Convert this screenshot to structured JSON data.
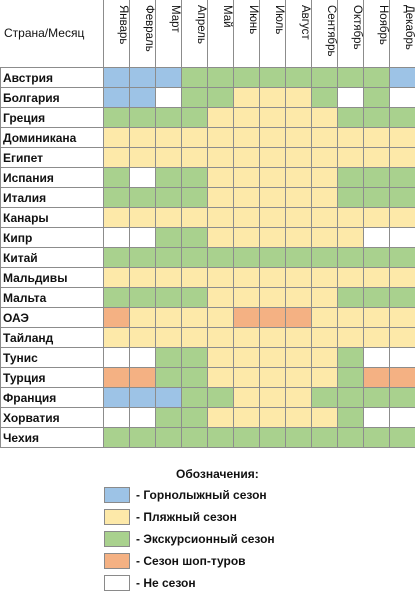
{
  "chart_data": {
    "type": "table",
    "corner_label": "Страна/Месяц",
    "months": [
      "Январь",
      "Февраль",
      "Март",
      "Апрель",
      "Май",
      "Июнь",
      "Июль",
      "Август",
      "Сентябрь",
      "Октябрь",
      "Ноябрь",
      "Декабрь"
    ],
    "countries": [
      {
        "name": "Австрия",
        "seasons": [
          "S",
          "S",
          "S",
          "E",
          "E",
          "E",
          "E",
          "E",
          "E",
          "E",
          "E",
          "S"
        ]
      },
      {
        "name": "Болгария",
        "seasons": [
          "S",
          "S",
          "N",
          "E",
          "E",
          "B",
          "B",
          "B",
          "E",
          "N",
          "E",
          "N"
        ]
      },
      {
        "name": "Греция",
        "seasons": [
          "E",
          "E",
          "E",
          "E",
          "B",
          "B",
          "B",
          "B",
          "B",
          "E",
          "E",
          "E"
        ]
      },
      {
        "name": "Доминикана",
        "seasons": [
          "B",
          "B",
          "B",
          "B",
          "B",
          "B",
          "B",
          "B",
          "B",
          "B",
          "B",
          "B"
        ]
      },
      {
        "name": "Египет",
        "seasons": [
          "B",
          "B",
          "B",
          "B",
          "B",
          "B",
          "B",
          "B",
          "B",
          "B",
          "B",
          "B"
        ]
      },
      {
        "name": "Испания",
        "seasons": [
          "E",
          "N",
          "E",
          "E",
          "B",
          "B",
          "B",
          "B",
          "B",
          "E",
          "E",
          "E"
        ]
      },
      {
        "name": "Италия",
        "seasons": [
          "E",
          "E",
          "E",
          "E",
          "B",
          "B",
          "B",
          "B",
          "B",
          "E",
          "E",
          "E"
        ]
      },
      {
        "name": "Канары",
        "seasons": [
          "B",
          "B",
          "B",
          "B",
          "B",
          "B",
          "B",
          "B",
          "B",
          "B",
          "B",
          "B"
        ]
      },
      {
        "name": "Кипр",
        "seasons": [
          "N",
          "N",
          "E",
          "E",
          "B",
          "B",
          "B",
          "B",
          "B",
          "B",
          "N",
          "N"
        ]
      },
      {
        "name": "Китай",
        "seasons": [
          "E",
          "E",
          "E",
          "E",
          "E",
          "E",
          "E",
          "E",
          "E",
          "E",
          "E",
          "E"
        ]
      },
      {
        "name": "Мальдивы",
        "seasons": [
          "B",
          "B",
          "B",
          "B",
          "B",
          "B",
          "B",
          "B",
          "B",
          "B",
          "B",
          "B"
        ]
      },
      {
        "name": "Мальта",
        "seasons": [
          "E",
          "E",
          "E",
          "E",
          "B",
          "B",
          "B",
          "B",
          "B",
          "E",
          "E",
          "E"
        ]
      },
      {
        "name": "ОАЭ",
        "seasons": [
          "P",
          "B",
          "B",
          "B",
          "B",
          "P",
          "P",
          "P",
          "B",
          "B",
          "B",
          "B"
        ]
      },
      {
        "name": "Тайланд",
        "seasons": [
          "B",
          "B",
          "B",
          "B",
          "B",
          "B",
          "B",
          "B",
          "B",
          "B",
          "B",
          "B"
        ]
      },
      {
        "name": "Тунис",
        "seasons": [
          "N",
          "N",
          "E",
          "E",
          "B",
          "B",
          "B",
          "B",
          "B",
          "E",
          "N",
          "N"
        ]
      },
      {
        "name": "Турция",
        "seasons": [
          "P",
          "P",
          "E",
          "E",
          "B",
          "B",
          "B",
          "B",
          "B",
          "E",
          "P",
          "P"
        ]
      },
      {
        "name": "Франция",
        "seasons": [
          "S",
          "S",
          "S",
          "E",
          "E",
          "B",
          "B",
          "B",
          "E",
          "E",
          "E",
          "E"
        ]
      },
      {
        "name": "Хорватия",
        "seasons": [
          "N",
          "N",
          "E",
          "E",
          "B",
          "B",
          "B",
          "B",
          "B",
          "E",
          "N",
          "N"
        ]
      },
      {
        "name": "Чехия",
        "seasons": [
          "E",
          "E",
          "E",
          "E",
          "E",
          "E",
          "E",
          "E",
          "E",
          "E",
          "E",
          "E"
        ]
      }
    ],
    "colors": {
      "S": "#9dc3e6",
      "B": "#fde9a9",
      "E": "#a9d18e",
      "P": "#f4b183",
      "N": "#ffffff"
    },
    "grid_color": "#8c8c8c"
  },
  "legend": {
    "title": "Обозначения:",
    "items": [
      {
        "key": "S",
        "label": "- Горнолыжный сезон"
      },
      {
        "key": "B",
        "label": "- Пляжный сезон"
      },
      {
        "key": "E",
        "label": "- Экскурсионный сезон"
      },
      {
        "key": "P",
        "label": "- Сезон шоп-туров"
      },
      {
        "key": "N",
        "label": "- Не сезон"
      }
    ]
  }
}
